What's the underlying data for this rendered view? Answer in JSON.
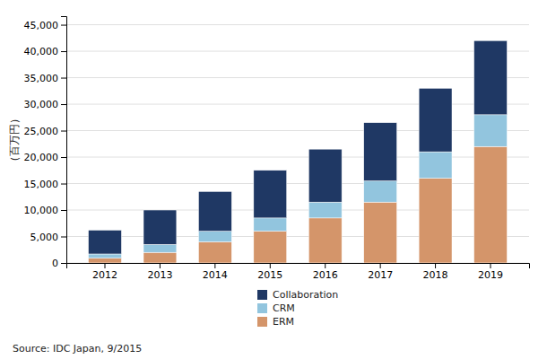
{
  "chart_data": {
    "type": "bar",
    "stacked": true,
    "categories": [
      "2012",
      "2013",
      "2014",
      "2015",
      "2016",
      "2017",
      "2018",
      "2019"
    ],
    "series": [
      {
        "name": "ERM",
        "color": "#D4956A",
        "values": [
          900,
          2000,
          4000,
          6000,
          8500,
          11500,
          16000,
          22000
        ]
      },
      {
        "name": "CRM",
        "color": "#92C5DE",
        "values": [
          800,
          1500,
          2000,
          2500,
          3000,
          4000,
          5000,
          6000
        ]
      },
      {
        "name": "Collaboration",
        "color": "#1F3864",
        "values": [
          4500,
          6500,
          7500,
          9000,
          10000,
          11000,
          12000,
          14000
        ]
      }
    ],
    "ylabel": "（百万円）",
    "ylim": [
      0,
      46620
    ],
    "yticks": [
      0,
      {
        "value": 5000,
        "label": "5,000"
      },
      {
        "value": 10000,
        "label": "10,000"
      },
      {
        "value": 15000,
        "label": "15,000"
      },
      {
        "value": 20000,
        "label": "20,000"
      },
      {
        "value": 25000,
        "label": "25,000"
      },
      {
        "value": 30000,
        "label": "30,000"
      },
      {
        "value": 35000,
        "label": "35,000"
      },
      {
        "value": 40000,
        "label": "40,000"
      },
      {
        "value": 45000,
        "label": "45,000"
      }
    ],
    "grid": true,
    "legend": "bottom",
    "annotations": [
      "Source: IDC Japan, 9/2015"
    ]
  }
}
